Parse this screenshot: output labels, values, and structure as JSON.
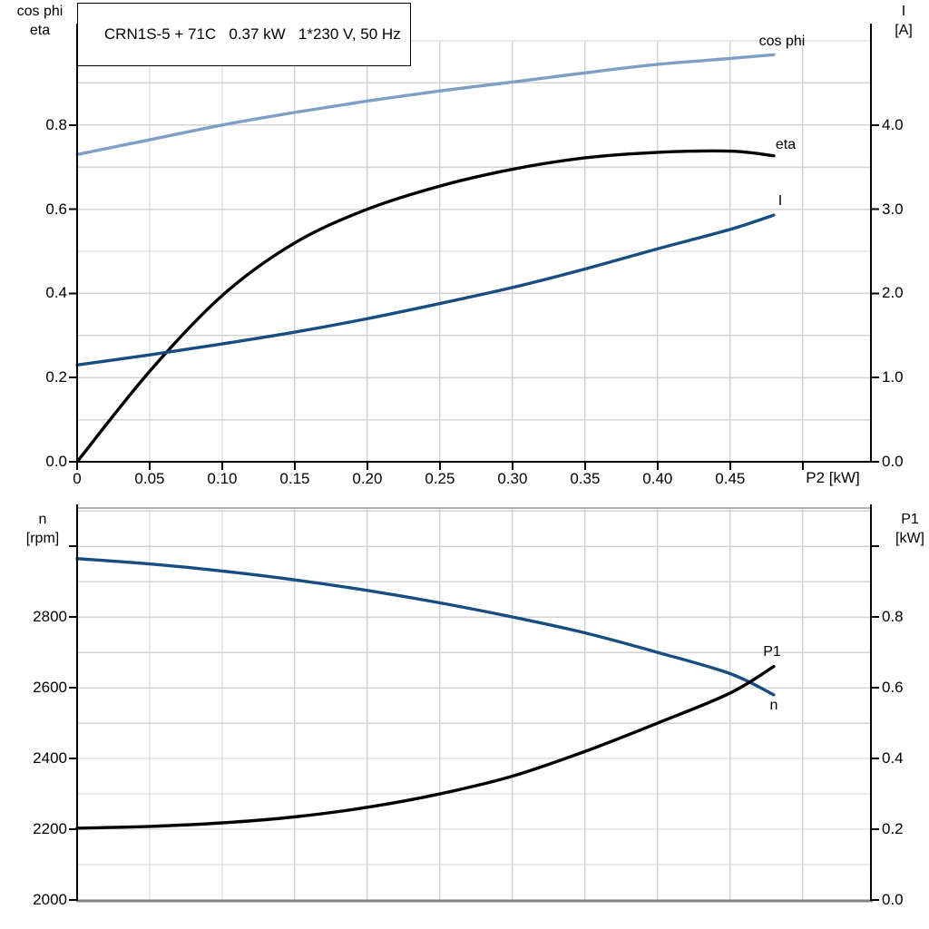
{
  "title": {
    "text": "CRN1S-5 + 71C   0.37 kW   1*230 V, 50 Hz"
  },
  "colors": {
    "light_blue": "#7e9fc5",
    "dark_blue": "#174e81",
    "black": "#000000",
    "grid": "#d3d3d3",
    "axis": "#000000",
    "border_top_gray": "#b2b2b2",
    "border_bottom_gray": "#848484"
  },
  "top_chart": {
    "left_axis_title": [
      "cos phi",
      "eta"
    ],
    "right_axis_title": [
      "I",
      "[A]"
    ],
    "x_axis_title": "P2 [kW]",
    "curve_labels": {
      "cos_phi": "cos phi",
      "eta": "eta",
      "current": "I"
    }
  },
  "bottom_chart": {
    "left_axis_title": [
      "n",
      "[rpm]"
    ],
    "right_axis_title": [
      "P1",
      "[kW]"
    ],
    "curve_labels": {
      "n": "n",
      "p1": "P1"
    }
  },
  "chart_data": [
    {
      "type": "line",
      "panel": "top",
      "title": "CRN1S-5 + 71C 0.37 kW 1*230 V, 50 Hz",
      "xlabel": "P2 [kW]",
      "ylabel_left": "cos phi, eta",
      "ylabel_right": "I [A]",
      "xlim": [
        0,
        0.547
      ],
      "ylim_left": [
        0,
        1.0
      ],
      "ylim_right": [
        0,
        5.0
      ],
      "grid": true,
      "legend": "inline-end-labels",
      "x_grid": [
        0.05,
        0.1,
        0.15,
        0.2,
        0.25,
        0.3,
        0.35,
        0.4,
        0.45,
        0.5
      ],
      "y_grid_left": [
        0.1,
        0.2,
        0.3,
        0.4,
        0.5,
        0.6,
        0.7,
        0.8,
        0.9,
        1.0
      ],
      "x_tick_values": [
        0,
        0.05,
        0.1,
        0.15,
        0.2,
        0.25,
        0.3,
        0.35,
        0.4,
        0.45,
        0.5
      ],
      "x_tick_labels": [
        "0",
        "0.05",
        "0.10",
        "0.15",
        "0.20",
        "0.25",
        "0.30",
        "0.35",
        "0.40",
        "0.45",
        ""
      ],
      "left_tick_values": [
        0,
        0.2,
        0.4,
        0.6,
        0.8
      ],
      "left_tick_labels": [
        "0.0",
        "0.2",
        "0.4",
        "0.6",
        "0.8"
      ],
      "right_tick_values": [
        0,
        1,
        2,
        3,
        4
      ],
      "right_tick_labels": [
        "0.0",
        "1.0",
        "2.0",
        "3.0",
        "4.0"
      ],
      "series": [
        {
          "name": "cos phi",
          "axis": "left",
          "color": "light_blue",
          "x": [
            0,
            0.05,
            0.1,
            0.15,
            0.2,
            0.25,
            0.3,
            0.35,
            0.4,
            0.45,
            0.48
          ],
          "y": [
            0.73,
            0.765,
            0.8,
            0.83,
            0.857,
            0.881,
            0.902,
            0.924,
            0.944,
            0.958,
            0.967
          ]
        },
        {
          "name": "eta",
          "axis": "left",
          "color": "black",
          "x": [
            0,
            0.05,
            0.1,
            0.15,
            0.2,
            0.25,
            0.3,
            0.35,
            0.4,
            0.45,
            0.48
          ],
          "y": [
            0.0,
            0.215,
            0.395,
            0.52,
            0.6,
            0.655,
            0.695,
            0.722,
            0.735,
            0.738,
            0.727
          ]
        },
        {
          "name": "I",
          "axis": "right",
          "color": "dark_blue",
          "x": [
            0,
            0.05,
            0.1,
            0.15,
            0.2,
            0.25,
            0.3,
            0.35,
            0.4,
            0.45,
            0.48
          ],
          "y": [
            1.15,
            1.27,
            1.4,
            1.54,
            1.7,
            1.88,
            2.07,
            2.29,
            2.53,
            2.76,
            2.93
          ]
        }
      ]
    },
    {
      "type": "line",
      "panel": "bottom",
      "title": "",
      "xlabel": "",
      "ylabel_left": "n [rpm]",
      "ylabel_right": "P1 [kW]",
      "xlim": [
        0,
        0.547
      ],
      "ylim_left": [
        2000,
        3108
      ],
      "ylim_right": [
        0,
        1.108
      ],
      "grid": true,
      "legend": "inline-end-labels",
      "x_grid": [
        0.05,
        0.1,
        0.15,
        0.2,
        0.25,
        0.3,
        0.35,
        0.4,
        0.45,
        0.5
      ],
      "y_grid_left": [
        2100,
        2200,
        2300,
        2400,
        2500,
        2600,
        2700,
        2800,
        2900,
        3000,
        3100
      ],
      "x_tick_values": [],
      "x_tick_labels": [],
      "left_tick_values": [
        2000,
        2200,
        2400,
        2600,
        2800,
        3000
      ],
      "left_tick_labels": [
        "2000",
        "2200",
        "2400",
        "2600",
        "2800",
        ""
      ],
      "right_tick_values": [
        0,
        0.2,
        0.4,
        0.6,
        0.8,
        1.0
      ],
      "right_tick_labels": [
        "0.0",
        "0.2",
        "0.4",
        "0.6",
        "0.8",
        ""
      ],
      "series": [
        {
          "name": "n",
          "axis": "left",
          "color": "dark_blue",
          "x": [
            0,
            0.05,
            0.1,
            0.15,
            0.2,
            0.25,
            0.3,
            0.35,
            0.4,
            0.45,
            0.48
          ],
          "y": [
            2965,
            2950,
            2930,
            2905,
            2875,
            2840,
            2800,
            2755,
            2700,
            2640,
            2580
          ]
        },
        {
          "name": "P1",
          "axis": "right",
          "color": "black",
          "x": [
            0,
            0.05,
            0.1,
            0.15,
            0.2,
            0.25,
            0.3,
            0.35,
            0.4,
            0.45,
            0.48
          ],
          "y": [
            0.203,
            0.208,
            0.218,
            0.235,
            0.262,
            0.3,
            0.35,
            0.42,
            0.5,
            0.585,
            0.66
          ]
        }
      ]
    }
  ]
}
